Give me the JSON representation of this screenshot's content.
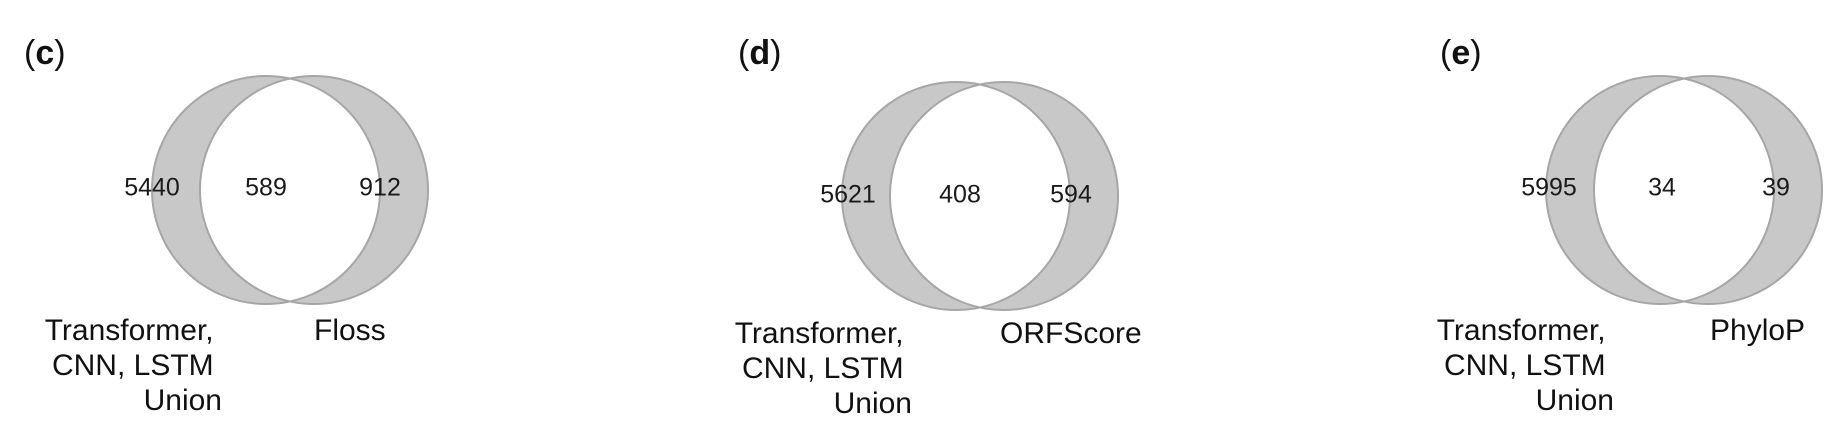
{
  "colors": {
    "fill": "#c8c8c8",
    "stroke": "#a6a6a6",
    "overlap": "#ffffff"
  },
  "panels": [
    {
      "letter": "c",
      "left_only": "5440",
      "overlap": "589",
      "right_only": "912",
      "left_label": [
        "Transformer,",
        "CNN, LSTM",
        "Union"
      ],
      "right_label": "Floss"
    },
    {
      "letter": "d",
      "left_only": "5621",
      "overlap": "408",
      "right_only": "594",
      "left_label": [
        "Transformer,",
        "CNN, LSTM",
        "Union"
      ],
      "right_label": "ORFScore"
    },
    {
      "letter": "e",
      "left_only": "5995",
      "overlap": "34",
      "right_only": "39",
      "left_label": [
        "Transformer,",
        "CNN, LSTM",
        "Union"
      ],
      "right_label": "PhyloP"
    }
  ]
}
